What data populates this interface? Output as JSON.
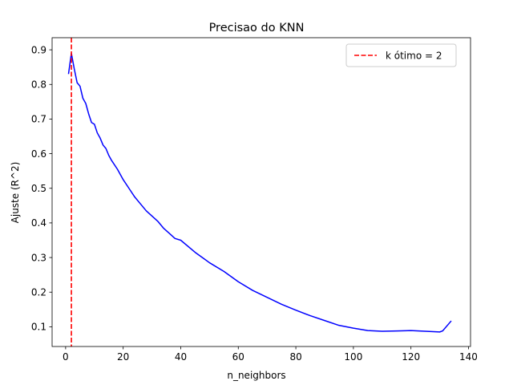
{
  "chart_data": {
    "type": "line",
    "title": "Precisao do KNN",
    "xlabel": "n_neighbors",
    "ylabel": "Ajuste (R^2)",
    "xlim": [
      -4.7,
      140.7
    ],
    "ylim": [
      0.043,
      0.935
    ],
    "xticks": [
      0,
      20,
      40,
      60,
      80,
      100,
      120,
      140
    ],
    "yticks": [
      0.1,
      0.2,
      0.3,
      0.4,
      0.5,
      0.6,
      0.7,
      0.8,
      0.9
    ],
    "grid": false,
    "legend": {
      "placement": "top-right",
      "entries": [
        "k ótimo = 2"
      ]
    },
    "series": [
      {
        "color": "#0000ff",
        "x": [
          1,
          2,
          3,
          4,
          5,
          6,
          7,
          8,
          9,
          10,
          11,
          12,
          13,
          14,
          15,
          16,
          18,
          20,
          22,
          24,
          26,
          28,
          30,
          32,
          34,
          36,
          38,
          40,
          45,
          50,
          55,
          60,
          65,
          70,
          75,
          80,
          85,
          90,
          95,
          100,
          105,
          110,
          115,
          120,
          125,
          130,
          131,
          134
        ],
        "y": [
          0.83,
          0.89,
          0.845,
          0.805,
          0.795,
          0.76,
          0.745,
          0.715,
          0.69,
          0.685,
          0.66,
          0.645,
          0.625,
          0.615,
          0.595,
          0.58,
          0.555,
          0.525,
          0.5,
          0.475,
          0.455,
          0.435,
          0.42,
          0.405,
          0.385,
          0.37,
          0.355,
          0.35,
          0.315,
          0.285,
          0.26,
          0.23,
          0.205,
          0.185,
          0.165,
          0.148,
          0.132,
          0.118,
          0.104,
          0.096,
          0.089,
          0.087,
          0.088,
          0.089,
          0.087,
          0.085,
          0.088,
          0.117
        ]
      }
    ],
    "reference_lines": [
      {
        "orientation": "vertical",
        "x": 2,
        "color": "#ff0000",
        "style": "dashed",
        "label": "k ótimo = 2"
      }
    ]
  }
}
